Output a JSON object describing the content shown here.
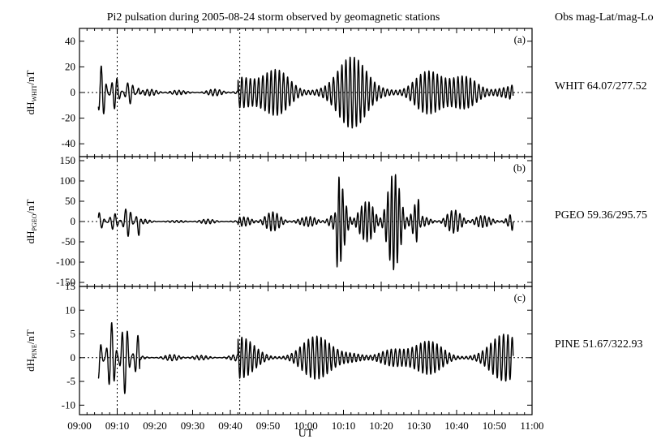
{
  "chart_data": {
    "type": "line",
    "title": "Pi2 pulsation during 2005-08-24 storm observed by geomagnetic stations",
    "station_header": "Obs mag-Lat/mag-Lo",
    "xlabel": "UT",
    "x_ticks": [
      "09:00",
      "09:10",
      "09:20",
      "09:30",
      "09:40",
      "09:50",
      "10:00",
      "10:10",
      "10:20",
      "10:30",
      "10:40",
      "10:50",
      "11:00"
    ],
    "xlim_minutes": [
      0,
      120
    ],
    "data_range_minutes": [
      5,
      115
    ],
    "vertical_markers_minutes": [
      10,
      42.5
    ],
    "panels": [
      {
        "label": "(a)",
        "station": "WHIT 64.07/277.52",
        "ylabel": {
          "prefix": "dH",
          "subscript": "WHIT",
          "suffix": "/nT"
        },
        "ylim": [
          -50,
          50
        ],
        "yticks": [
          -40,
          -20,
          0,
          20,
          40
        ],
        "series": [
          {
            "segments": [
              {
                "t0": 5,
                "t1": 16,
                "amp": 22,
                "period": 1.4
              },
              {
                "t0": 16,
                "t1": 42,
                "amp": 3,
                "period": 1.2
              },
              {
                "t0": 42,
                "t1": 115,
                "amp": 28,
                "period": 1.1
              }
            ]
          }
        ]
      },
      {
        "label": "(b)",
        "station": "PGEO 59.36/295.75",
        "ylabel": {
          "prefix": "dH",
          "subscript": "PGEO",
          "suffix": "/nT"
        },
        "ylim": [
          -160,
          160
        ],
        "yticks": [
          -150,
          -100,
          -50,
          0,
          50,
          100,
          150
        ],
        "series": [
          {
            "segments": [
              {
                "t0": 5,
                "t1": 16,
                "amp": 45,
                "period": 1.4
              },
              {
                "t0": 16,
                "t1": 42,
                "amp": 6,
                "period": 1.2
              },
              {
                "t0": 42,
                "t1": 68,
                "amp": 25,
                "period": 1.1
              },
              {
                "t0": 68,
                "t1": 90,
                "amp": 120,
                "period": 1.0
              },
              {
                "t0": 90,
                "t1": 115,
                "amp": 30,
                "period": 1.1
              }
            ]
          }
        ]
      },
      {
        "label": "(c)",
        "station": "PINE 51.67/322.93",
        "ylabel": {
          "prefix": "dH",
          "subscript": "PINE",
          "suffix": "/nT"
        },
        "ylim": [
          -12,
          15
        ],
        "yticks": [
          -10,
          -5,
          0,
          5,
          10,
          15
        ],
        "series": [
          {
            "segments": [
              {
                "t0": 5,
                "t1": 16,
                "amp": 8,
                "period": 1.4
              },
              {
                "t0": 16,
                "t1": 42,
                "amp": 0.8,
                "period": 1.2
              },
              {
                "t0": 42,
                "t1": 115,
                "amp": 5,
                "period": 1.1
              }
            ]
          }
        ]
      }
    ]
  }
}
